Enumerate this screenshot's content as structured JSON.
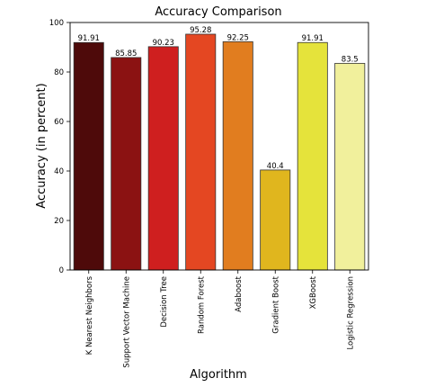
{
  "chart_data": {
    "type": "bar",
    "title": "Accuracy Comparison",
    "xlabel": "Algorithm",
    "ylabel": "Accuracy (in percent)",
    "ylim": [
      0,
      100
    ],
    "yticks": [
      0,
      20,
      40,
      60,
      80,
      100
    ],
    "grid": false,
    "categories": [
      "K Nearest Neighbors",
      "Support Vector Machine",
      "Decision Tree",
      "Random Forest",
      "Adaboost",
      "Gradient Boost",
      "XGBoost",
      "Logistic Regression"
    ],
    "values": [
      91.91,
      85.85,
      90.23,
      95.28,
      92.25,
      40.4,
      91.91,
      83.5
    ],
    "value_labels": [
      "91.91",
      "85.85",
      "90.23",
      "95.28",
      "92.25",
      "40.4",
      "91.91",
      "83.5"
    ],
    "colors": [
      "#4e0a0a",
      "#8b1212",
      "#cf1f1f",
      "#e44722",
      "#e17d1f",
      "#e0b61e",
      "#e5e33b",
      "#f1f09c"
    ]
  }
}
